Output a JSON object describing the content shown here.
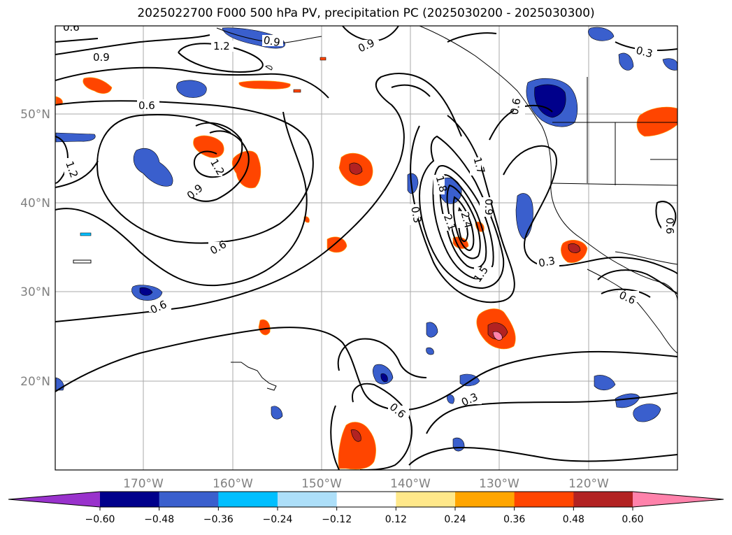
{
  "title": "2025022700 F000 500 hPa PV, precipitation PC (2025030200 - 2025030300)",
  "lat_labels": [
    "50°N",
    "40°N",
    "30°N",
    "20°N"
  ],
  "lon_labels": [
    "170°W",
    "160°W",
    "150°W",
    "140°W",
    "130°W",
    "120°W"
  ],
  "contour_labels": [
    "0.6",
    "0.9",
    "1.2",
    "0.6",
    "0.9",
    "0.3",
    "1.2",
    "0.6",
    "0.9",
    "1.2",
    "0.6",
    "0.6",
    "0.3",
    "1.8",
    "2.1",
    "2.4",
    "1.7",
    "1.5",
    "0.9",
    "0.3",
    "0.6",
    "0.6",
    "0.6",
    "0.3",
    "0.9"
  ],
  "colorbar": {
    "ticks": [
      "−0.60",
      "−0.48",
      "−0.36",
      "−0.24",
      "−0.12",
      "0.12",
      "0.24",
      "0.36",
      "0.48",
      "0.60"
    ],
    "colors": [
      "#9932CC",
      "#00008B",
      "#3A5FCD",
      "#00BFFF",
      "#ADDFF9",
      "#FFFFFF",
      "#FFE88A",
      "#FFA500",
      "#FF4500",
      "#B22222",
      "#FF82AB"
    ]
  }
}
